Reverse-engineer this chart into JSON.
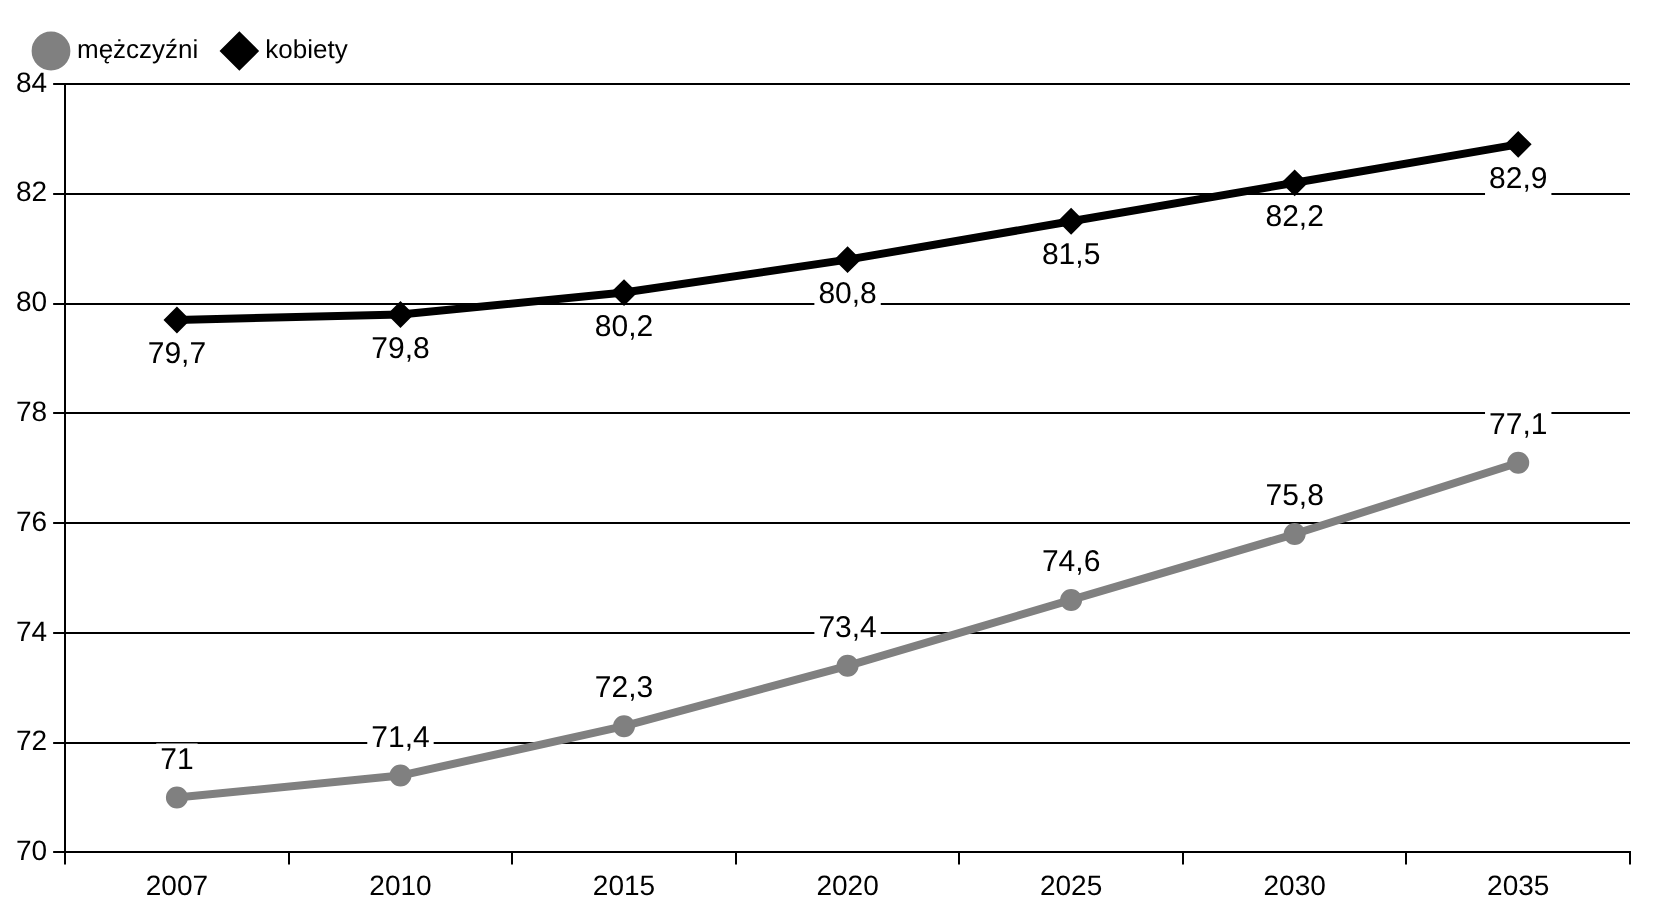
{
  "chart_data": {
    "type": "line",
    "categories": [
      "2007",
      "2010",
      "2015",
      "2020",
      "2025",
      "2030",
      "2035"
    ],
    "series": [
      {
        "name": "mężczyźni",
        "color": "#808080",
        "marker": "circle",
        "values": [
          71,
          71.4,
          72.3,
          73.4,
          74.6,
          75.8,
          77.1
        ],
        "value_labels": [
          "71",
          "71,4",
          "72,3",
          "73,4",
          "74,6",
          "75,8",
          "77,1"
        ]
      },
      {
        "name": "kobiety",
        "color": "#000000",
        "marker": "diamond",
        "values": [
          79.7,
          79.8,
          80.2,
          80.8,
          81.5,
          82.2,
          82.9
        ],
        "value_labels": [
          "79,7",
          "79,8",
          "80,2",
          "80,8",
          "81,5",
          "82,2",
          "82,9"
        ]
      }
    ],
    "ylim": [
      70,
      84
    ],
    "yticks": [
      70,
      72,
      74,
      76,
      78,
      80,
      82,
      84
    ],
    "grid": "y",
    "legend": "top left"
  }
}
